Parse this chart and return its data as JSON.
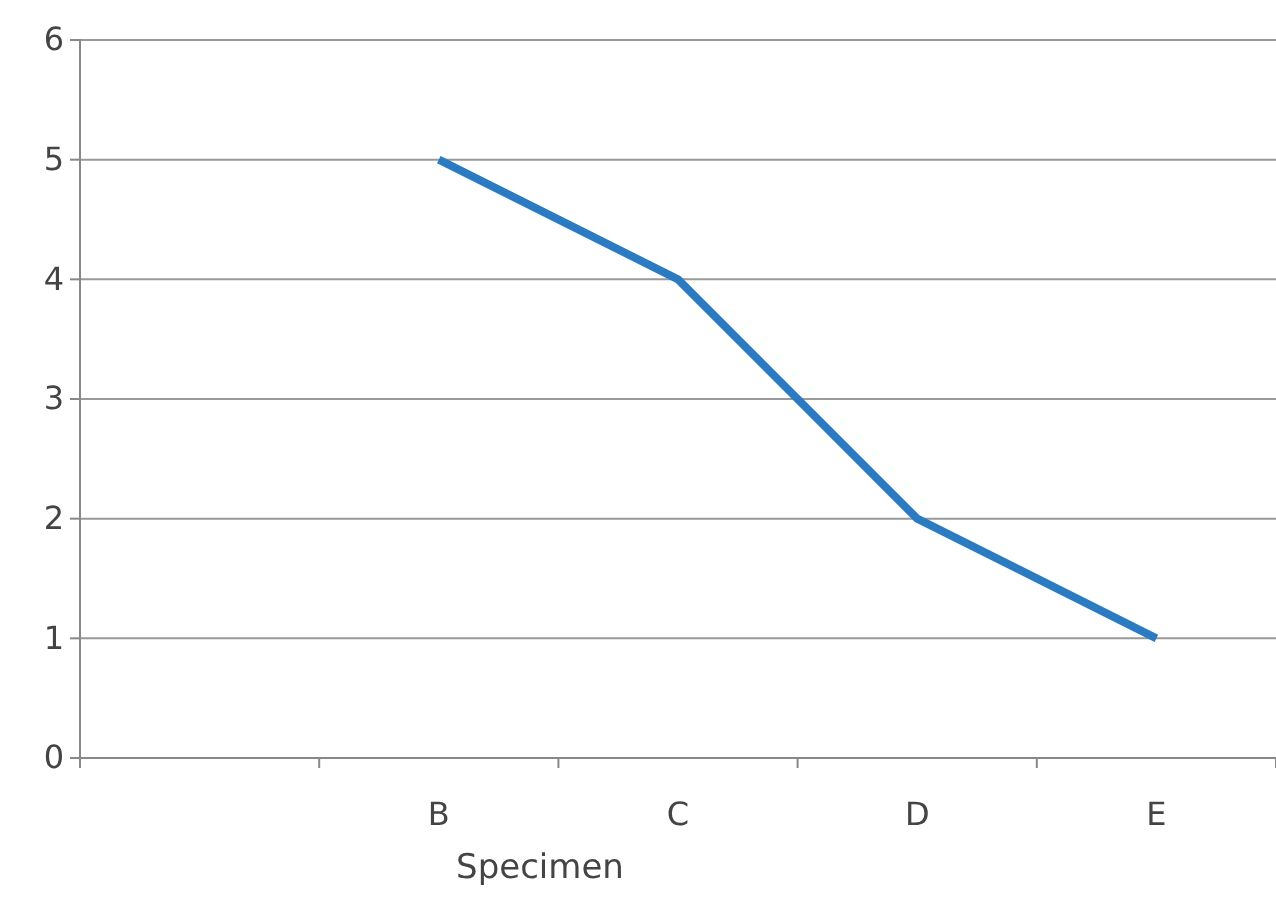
{
  "chart_data": {
    "type": "line",
    "xlabel": "Specimen",
    "categories": [
      null,
      "B",
      "C",
      "D",
      "E"
    ],
    "series": [
      {
        "color": "#2a7bc1",
        "values": [
          null,
          5,
          4,
          2,
          1
        ]
      }
    ],
    "ylim": [
      0,
      6
    ],
    "yticks": [
      0,
      1,
      2,
      3,
      4,
      5,
      6
    ],
    "grid": "y",
    "legend": false,
    "marker": "none",
    "line_style": "solid"
  }
}
